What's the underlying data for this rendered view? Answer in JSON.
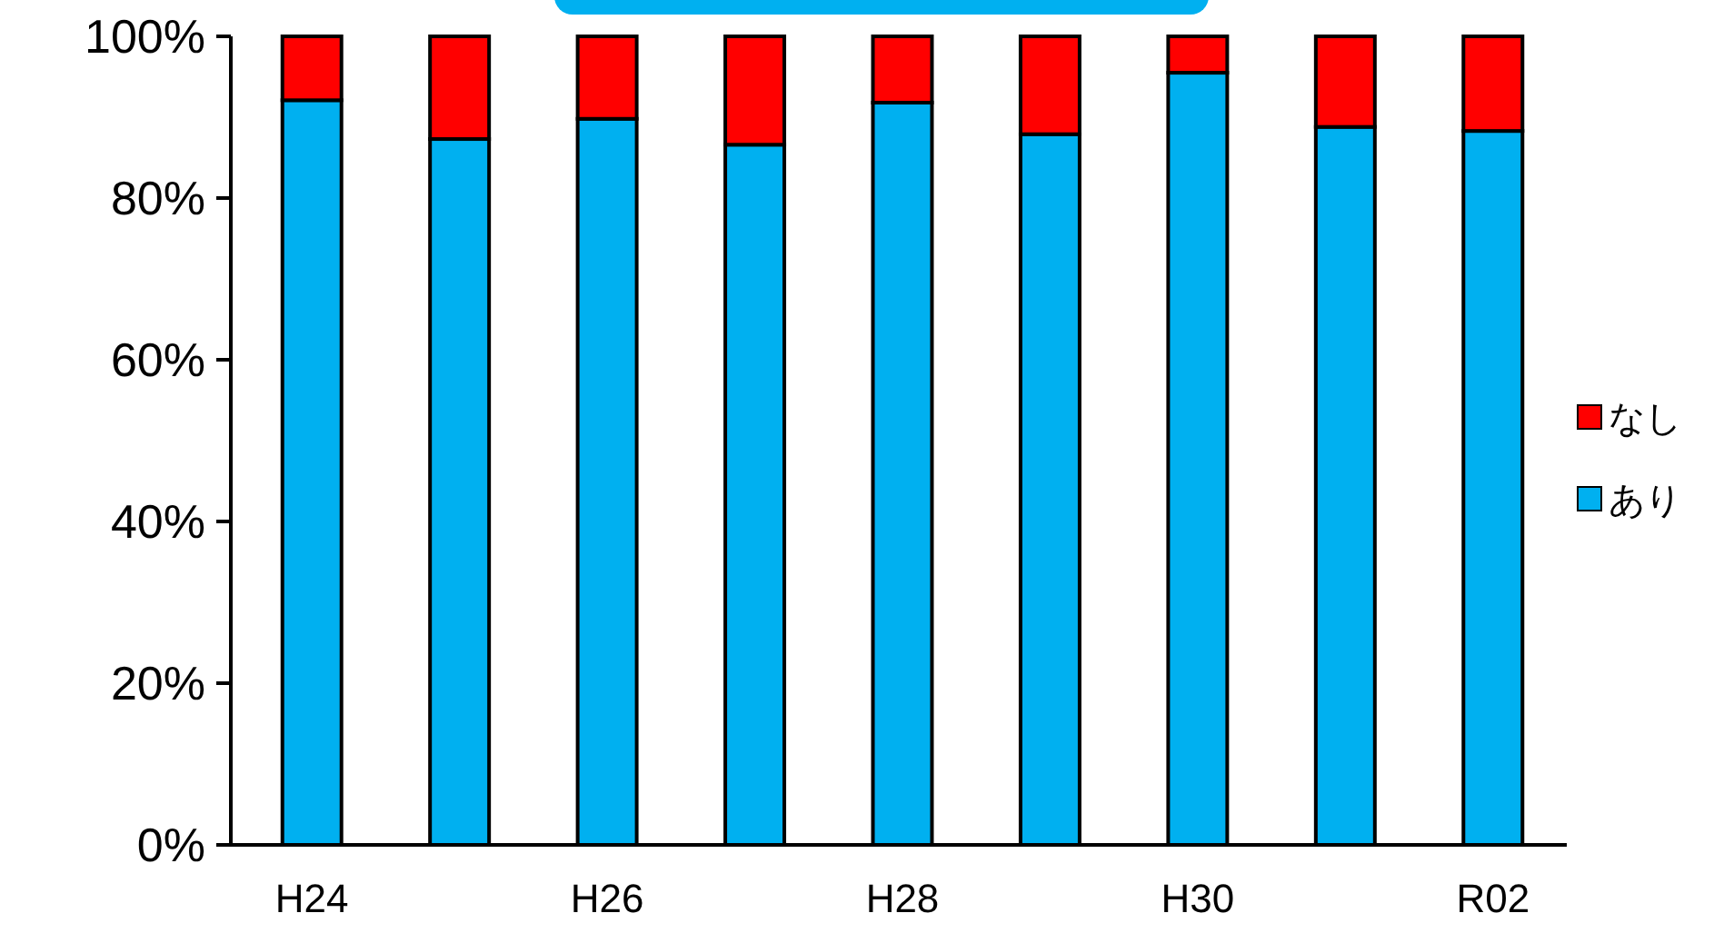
{
  "chart_data": {
    "type": "bar",
    "stacked": true,
    "categories": [
      "H24",
      null,
      "H26",
      null,
      "H28",
      null,
      "H30",
      null,
      "R02"
    ],
    "series": [
      {
        "name": "あり",
        "color": "#00b0f0",
        "values": [
          92.1,
          87.3,
          89.8,
          86.6,
          91.8,
          87.9,
          95.5,
          88.8,
          88.3
        ]
      },
      {
        "name": "なし",
        "color": "#ff0000",
        "values": [
          7.9,
          12.7,
          10.2,
          13.4,
          8.2,
          12.1,
          4.5,
          11.2,
          11.7
        ]
      }
    ],
    "ylim": [
      0,
      100
    ],
    "yticks": [
      {
        "value": 0,
        "label": "0%"
      },
      {
        "value": 20,
        "label": "20%"
      },
      {
        "value": 40,
        "label": "40%"
      },
      {
        "value": 60,
        "label": "60%"
      },
      {
        "value": 80,
        "label": "80%"
      },
      {
        "value": 100,
        "label": "100%"
      }
    ],
    "legend": "right"
  }
}
